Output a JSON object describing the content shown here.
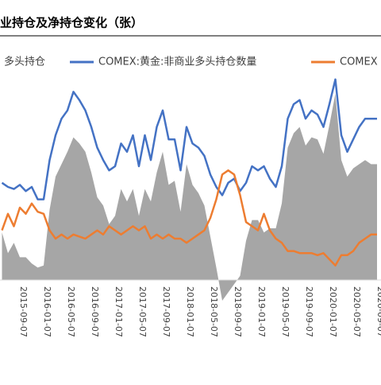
{
  "chart_data": {
    "type": "area-line",
    "title": "业持仓及净持仓变化（张）",
    "categories": [
      null,
      null,
      null,
      "2015-09-07",
      null,
      null,
      null,
      "2016-01-07",
      null,
      null,
      null,
      "2016-05-07",
      null,
      null,
      null,
      "2016-09-07",
      null,
      null,
      null,
      "2017-01-07",
      null,
      null,
      null,
      "2017-05-07",
      null,
      null,
      null,
      "2017-09-07",
      null,
      null,
      null,
      "2018-01-07",
      null,
      null,
      null,
      "2018-05-07",
      null,
      null,
      null,
      "2018-09-07",
      null,
      null,
      null,
      "2019-01-07",
      null,
      null,
      null,
      "2019-05-07",
      null,
      null,
      null,
      "2019-09-07",
      null,
      null,
      null,
      "2020-01-07",
      null,
      null,
      null,
      "2020-05-07",
      null,
      null,
      null,
      "2020-09-07"
    ],
    "ylim": [
      -10,
      100
    ],
    "series": [
      {
        "name": "多头持仓",
        "color": "#a6a6a6",
        "kind": "area",
        "values": [
          23,
          13,
          18,
          11,
          11,
          8,
          6,
          7,
          34,
          50,
          56,
          62,
          69,
          66,
          62,
          52,
          40,
          36,
          27,
          31,
          44,
          38,
          44,
          31,
          44,
          38,
          52,
          62,
          46,
          48,
          33,
          56,
          46,
          42,
          36,
          21,
          6,
          -10,
          -6,
          -2,
          2,
          19,
          29,
          29,
          23,
          25,
          25,
          37,
          64,
          71,
          74,
          65,
          69,
          68,
          61,
          75,
          90,
          58,
          50,
          54,
          56,
          58,
          56,
          56
        ]
      },
      {
        "name": "COMEX:黄金:非商业多头持仓数量",
        "color": "#4472c4",
        "kind": "line",
        "values": [
          47,
          45,
          44,
          46,
          43,
          45,
          39,
          39,
          58,
          70,
          78,
          82,
          91,
          87,
          82,
          74,
          64,
          58,
          53,
          55,
          66,
          62,
          70,
          55,
          70,
          58,
          74,
          82,
          68,
          68,
          53,
          74,
          66,
          64,
          60,
          51,
          45,
          41,
          47,
          49,
          43,
          47,
          55,
          53,
          55,
          49,
          45,
          55,
          78,
          85,
          87,
          78,
          82,
          80,
          74,
          85,
          97,
          70,
          62,
          68,
          74,
          78,
          78,
          78
        ]
      },
      {
        "name": "COMEX",
        "color": "#ed7d31",
        "kind": "line",
        "values": [
          24,
          32,
          26,
          35,
          32,
          37,
          33,
          32,
          24,
          20,
          22,
          20,
          22,
          21,
          20,
          22,
          24,
          22,
          26,
          24,
          22,
          24,
          26,
          24,
          26,
          20,
          22,
          20,
          22,
          20,
          20,
          18,
          20,
          22,
          24,
          30,
          39,
          51,
          53,
          51,
          41,
          28,
          26,
          24,
          32,
          24,
          20,
          18,
          14,
          14,
          13,
          13,
          13,
          12,
          13,
          10,
          7,
          12,
          12,
          14,
          18,
          20,
          22,
          22
        ]
      }
    ]
  }
}
